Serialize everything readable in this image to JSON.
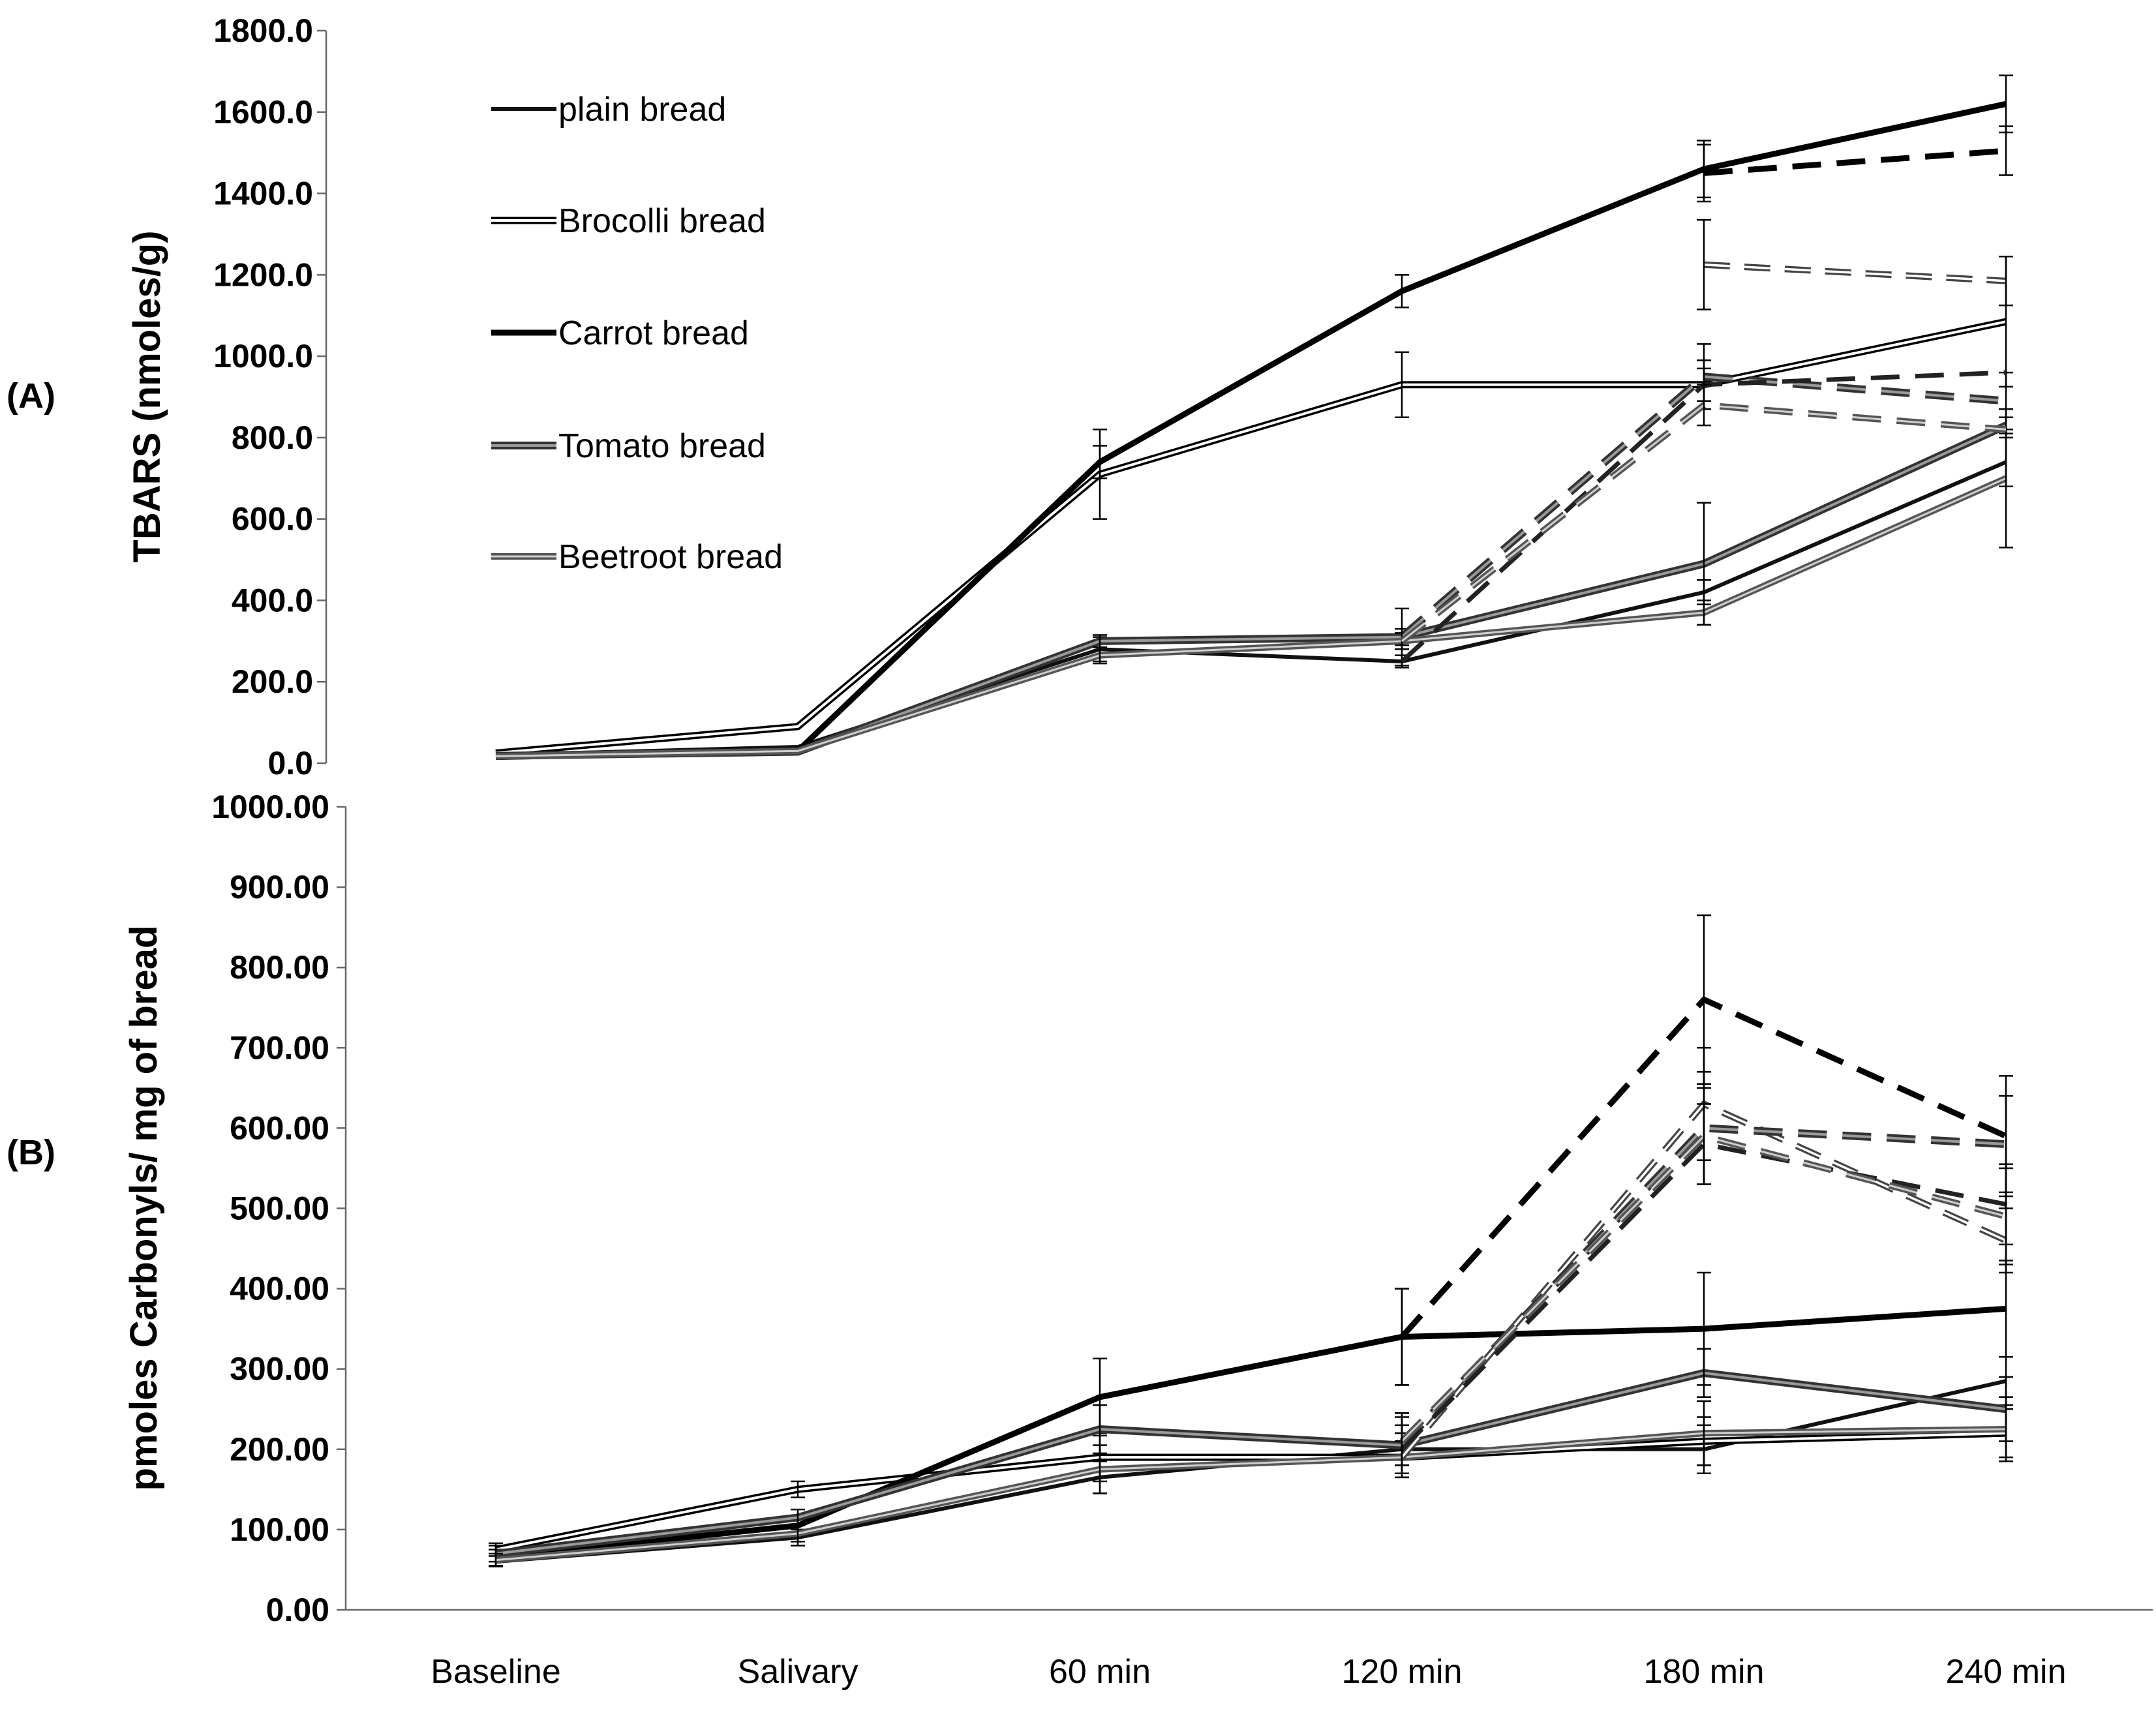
{
  "chart_data": [
    {
      "panel": "(A)",
      "type": "line",
      "ylabel": "TBARS (nmoles/g)",
      "ylim": [
        0,
        1800
      ],
      "yticks": [
        "0.0",
        "200.0",
        "400.0",
        "600.0",
        "800.0",
        "1000.0",
        "1200.0",
        "1400.0",
        "1600.0",
        "1800.0"
      ],
      "categories": [
        "Baseline",
        "Salivary",
        "60 min",
        "120 min",
        "180 min",
        "240 min"
      ],
      "legend": [
        "plain bread",
        "Brocolli bread",
        "Carrot bread",
        "Tomato bread",
        "Beetroot bread"
      ],
      "series": [
        {
          "name": "plain bread",
          "style": "plain",
          "x": [
            0,
            1,
            2,
            3,
            4,
            5
          ],
          "values": [
            20,
            40,
            280,
            250,
            420,
            740
          ],
          "err": [
            0,
            0,
            30,
            15,
            30,
            60
          ]
        },
        {
          "name": "Brocolli bread",
          "style": "double",
          "x": [
            0,
            1,
            2,
            3,
            4,
            5
          ],
          "values": [
            25,
            90,
            710,
            930,
            930,
            1085
          ],
          "err": [
            0,
            0,
            110,
            80,
            40,
            160
          ]
        },
        {
          "name": "Carrot bread",
          "style": "thick",
          "x": [
            0,
            1,
            2,
            3,
            4,
            5
          ],
          "values": [
            15,
            30,
            740,
            1160,
            1460,
            1620
          ],
          "err": [
            0,
            0,
            40,
            40,
            70,
            70
          ]
        },
        {
          "name": "Tomato bread",
          "style": "tomato",
          "x": [
            0,
            1,
            2,
            3,
            4,
            5
          ],
          "values": [
            18,
            28,
            300,
            310,
            490,
            830
          ],
          "err": [
            0,
            0,
            15,
            20,
            150,
            20
          ]
        },
        {
          "name": "Beetroot bread",
          "style": "beet",
          "x": [
            0,
            1,
            2,
            3,
            4,
            5
          ],
          "values": [
            17,
            30,
            265,
            300,
            370,
            700
          ],
          "err": [
            0,
            0,
            20,
            20,
            30,
            170
          ]
        },
        {
          "name": "Carrot bread dashed",
          "style": "thick-dash",
          "x": [
            4,
            5
          ],
          "values": [
            1450,
            1505
          ],
          "err": [
            70,
            60
          ]
        },
        {
          "name": "Brocolli bread dashed",
          "style": "double-dash",
          "x": [
            4,
            5
          ],
          "values": [
            1225,
            1185
          ],
          "err": [
            110,
            60
          ]
        },
        {
          "name": "Tomato bread dashed",
          "style": "tomato-dash",
          "x": [
            3,
            4,
            5
          ],
          "values": [
            310,
            950,
            890
          ],
          "err": [
            70,
            80,
            70
          ]
        },
        {
          "name": "plain bread dashed",
          "style": "plain-dash",
          "x": [
            3,
            4,
            5
          ],
          "values": [
            250,
            930,
            960
          ],
          "err": [
            0,
            60,
            0
          ]
        },
        {
          "name": "Beetroot bread dashed",
          "style": "beet-dash",
          "x": [
            3,
            4,
            5
          ],
          "values": [
            300,
            880,
            820
          ],
          "err": [
            0,
            50,
            0
          ]
        }
      ]
    },
    {
      "panel": "(B)",
      "type": "line",
      "ylabel": "pmoles Carbonyls/  mg of bread",
      "ylim": [
        0,
        1000
      ],
      "yticks": [
        "0.00",
        "100.00",
        "200.00",
        "300.00",
        "400.00",
        "500.00",
        "600.00",
        "700.00",
        "800.00",
        "900.00",
        "1000.00"
      ],
      "categories": [
        "Baseline",
        "Salivary",
        "60 min",
        "120 min",
        "180 min",
        "240 min"
      ],
      "series": [
        {
          "name": "plain bread",
          "style": "plain",
          "x": [
            0,
            1,
            2,
            3,
            4,
            5
          ],
          "values": [
            60,
            90,
            165,
            200,
            200,
            285
          ],
          "err": [
            0,
            10,
            20,
            20,
            30,
            30
          ]
        },
        {
          "name": "Brocolli bread",
          "style": "double",
          "x": [
            0,
            1,
            2,
            3,
            4,
            5
          ],
          "values": [
            75,
            150,
            190,
            190,
            210,
            220
          ],
          "err": [
            8,
            10,
            30,
            20,
            30,
            30
          ]
        },
        {
          "name": "Carrot bread",
          "style": "thick",
          "x": [
            0,
            1,
            2,
            3,
            4,
            5
          ],
          "values": [
            65,
            105,
            265,
            340,
            350,
            375
          ],
          "err": [
            10,
            10,
            48,
            60,
            70,
            60
          ]
        },
        {
          "name": "Tomato bread",
          "style": "tomato",
          "x": [
            0,
            1,
            2,
            3,
            4,
            5
          ],
          "values": [
            70,
            115,
            225,
            205,
            295,
            250
          ],
          "err": [
            10,
            10,
            30,
            40,
            30,
            40
          ]
        },
        {
          "name": "Beetroot bread",
          "style": "beet",
          "x": [
            0,
            1,
            2,
            3,
            4,
            5
          ],
          "values": [
            62,
            95,
            175,
            190,
            220,
            225
          ],
          "err": [
            8,
            10,
            30,
            20,
            40,
            40
          ]
        },
        {
          "name": "Carrot bread dashed",
          "style": "thick-dash",
          "x": [
            3,
            4,
            5
          ],
          "values": [
            340,
            760,
            590
          ],
          "err": [
            60,
            105,
            75
          ]
        },
        {
          "name": "Brocolli bread dashed",
          "style": "double-dash",
          "x": [
            3,
            4,
            5
          ],
          "values": [
            190,
            630,
            460
          ],
          "err": [
            20,
            70,
            40
          ]
        },
        {
          "name": "Tomato bread dashed",
          "style": "tomato-dash",
          "x": [
            3,
            4,
            5
          ],
          "values": [
            205,
            600,
            580
          ],
          "err": [
            40,
            70,
            60
          ]
        },
        {
          "name": "plain bread dashed",
          "style": "plain-dash",
          "x": [
            3,
            4,
            5
          ],
          "values": [
            200,
            580,
            505
          ],
          "err": [
            30,
            50,
            50
          ]
        },
        {
          "name": "Beetroot bread dashed",
          "style": "beet-dash",
          "x": [
            3,
            4,
            5
          ],
          "values": [
            210,
            590,
            490
          ],
          "err": [
            30,
            60,
            60
          ]
        }
      ]
    }
  ]
}
